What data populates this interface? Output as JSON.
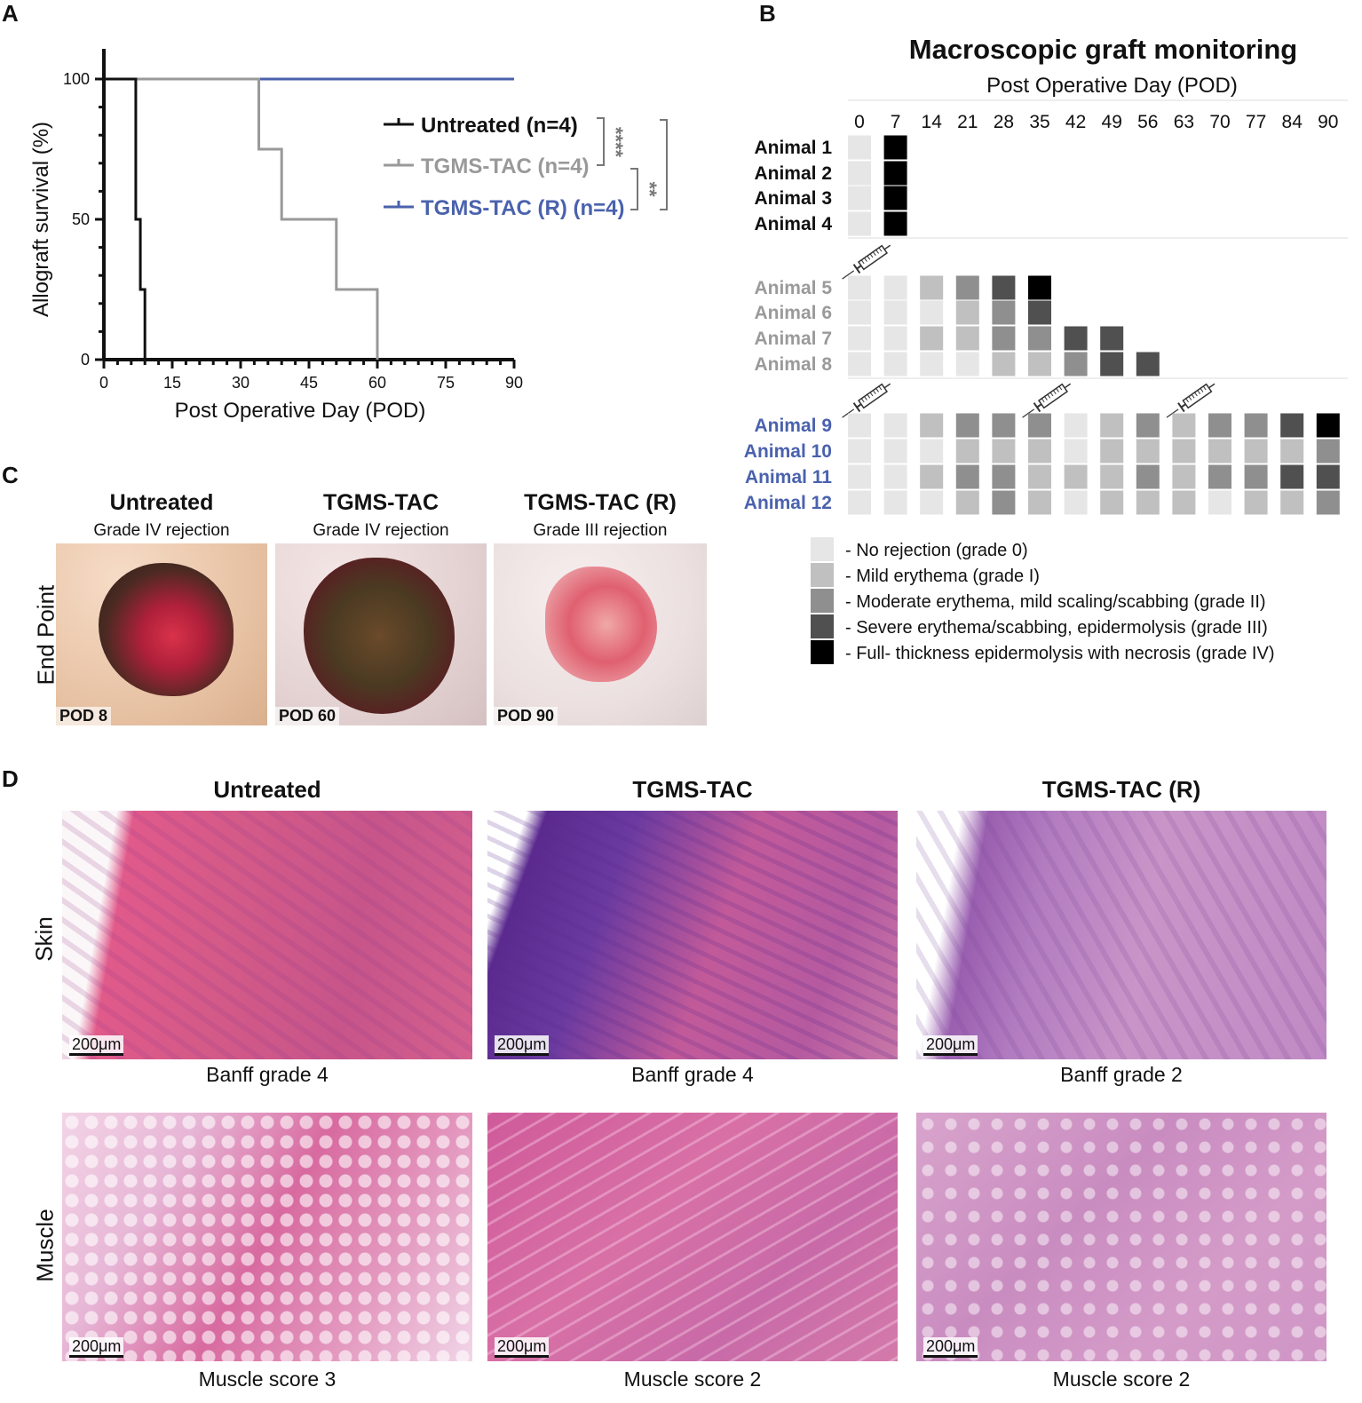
{
  "panels": {
    "a": "A",
    "b": "B",
    "c": "C",
    "d": "D"
  },
  "panel_a": {
    "ylabel": "Allograft survival (%)",
    "xlabel": "Post Operative Day (POD)",
    "yticks": [
      "0",
      "50",
      "100"
    ],
    "xticks": [
      "0",
      "15",
      "30",
      "45",
      "60",
      "75",
      "90"
    ],
    "legend": [
      {
        "label": "Untreated (n=4)",
        "color": "#111111"
      },
      {
        "label": "TGMS-TAC (n=4)",
        "color": "#999999"
      },
      {
        "label": "TGMS-TAC (R) (n=4)",
        "color": "#4a62ad"
      }
    ],
    "sig": {
      "untreated_vs_tgms": "****",
      "tgms_vs_r": "**",
      "untreated_vs_r": "****"
    }
  },
  "chart_data": {
    "type": "line",
    "title": "",
    "xlabel": "Post Operative Day (POD)",
    "ylabel": "Allograft survival (%)",
    "xlim": [
      0,
      90
    ],
    "ylim": [
      0,
      100
    ],
    "grid": false,
    "legend_position": "right",
    "series": [
      {
        "name": "Untreated (n=4)",
        "color": "#111111",
        "step": true,
        "x": [
          0,
          7,
          7,
          8,
          8,
          9,
          9
        ],
        "y": [
          100,
          100,
          50,
          50,
          25,
          25,
          0
        ]
      },
      {
        "name": "TGMS-TAC (n=4)",
        "color": "#999999",
        "step": true,
        "x": [
          0,
          34,
          34,
          39,
          39,
          51,
          51,
          60,
          60
        ],
        "y": [
          100,
          100,
          75,
          75,
          50,
          50,
          25,
          25,
          0
        ]
      },
      {
        "name": "TGMS-TAC (R) (n=4)",
        "color": "#4a62ad",
        "step": true,
        "x": [
          0,
          90
        ],
        "y": [
          100,
          100
        ]
      }
    ]
  },
  "panel_b": {
    "title": "Macroscopic graft monitoring",
    "subtitle": "Post Operative Day (POD)",
    "days": [
      "0",
      "7",
      "14",
      "21",
      "28",
      "35",
      "42",
      "49",
      "56",
      "63",
      "70",
      "77",
      "84",
      "90"
    ],
    "grade_colors": [
      "#e6e6e6",
      "#c0c0c0",
      "#8f8f8f",
      "#505050",
      "#000000"
    ],
    "groups": [
      {
        "color": "#111111",
        "syringes": [],
        "animals": [
          {
            "name": "Animal 1",
            "grades": [
              0,
              4
            ]
          },
          {
            "name": "Animal 2",
            "grades": [
              0,
              4
            ]
          },
          {
            "name": "Animal 3",
            "grades": [
              0,
              4
            ]
          },
          {
            "name": "Animal 4",
            "grades": [
              0,
              4
            ]
          }
        ]
      },
      {
        "color": "#9a9a9a",
        "syringes": [
          0
        ],
        "animals": [
          {
            "name": "Animal 5",
            "grades": [
              0,
              0,
              1,
              2,
              3,
              4
            ]
          },
          {
            "name": "Animal 6",
            "grades": [
              0,
              0,
              0,
              1,
              2,
              3
            ]
          },
          {
            "name": "Animal 7",
            "grades": [
              0,
              0,
              1,
              1,
              2,
              2,
              3,
              3
            ]
          },
          {
            "name": "Animal 8",
            "grades": [
              0,
              0,
              0,
              0,
              1,
              1,
              2,
              3,
              3
            ]
          }
        ]
      },
      {
        "color": "#4a62ad",
        "syringes": [
          0,
          5,
          9
        ],
        "animals": [
          {
            "name": "Animal 9",
            "grades": [
              0,
              0,
              1,
              2,
              2,
              2,
              0,
              1,
              2,
              1,
              2,
              2,
              3,
              4
            ]
          },
          {
            "name": "Animal 10",
            "grades": [
              0,
              0,
              0,
              1,
              1,
              1,
              0,
              1,
              1,
              1,
              1,
              1,
              1,
              2
            ]
          },
          {
            "name": "Animal 11",
            "grades": [
              0,
              0,
              1,
              2,
              2,
              1,
              1,
              1,
              2,
              1,
              2,
              2,
              3,
              3
            ]
          },
          {
            "name": "Animal 12",
            "grades": [
              0,
              0,
              0,
              1,
              2,
              1,
              0,
              1,
              1,
              1,
              0,
              1,
              1,
              2
            ]
          }
        ]
      }
    ],
    "legend": [
      "- No rejection (grade 0)",
      "- Mild erythema (grade I)",
      "- Moderate erythema, mild scaling/scabbing (grade II)",
      "- Severe erythema/scabbing, epidermolysis (grade III)",
      "- Full- thickness epidermolysis with necrosis (grade IV)"
    ]
  },
  "panel_c": {
    "row_label": "End Point",
    "columns": [
      {
        "title": "Untreated",
        "subtitle": "Grade IV rejection",
        "pod": "POD 8"
      },
      {
        "title": "TGMS-TAC",
        "subtitle": "Grade IV rejection",
        "pod": "POD 60"
      },
      {
        "title": "TGMS-TAC (R)",
        "subtitle": "Grade III rejection",
        "pod": "POD 90"
      }
    ]
  },
  "panel_d": {
    "columns": [
      "Untreated",
      "TGMS-TAC",
      "TGMS-TAC (R)"
    ],
    "rows": [
      "Skin",
      "Muscle"
    ],
    "scale": "200μm",
    "skin_captions": [
      "Banff grade 4",
      "Banff grade 4",
      "Banff grade 2"
    ],
    "muscle_captions": [
      "Muscle score 3",
      "Muscle score 2",
      "Muscle score 2"
    ]
  }
}
